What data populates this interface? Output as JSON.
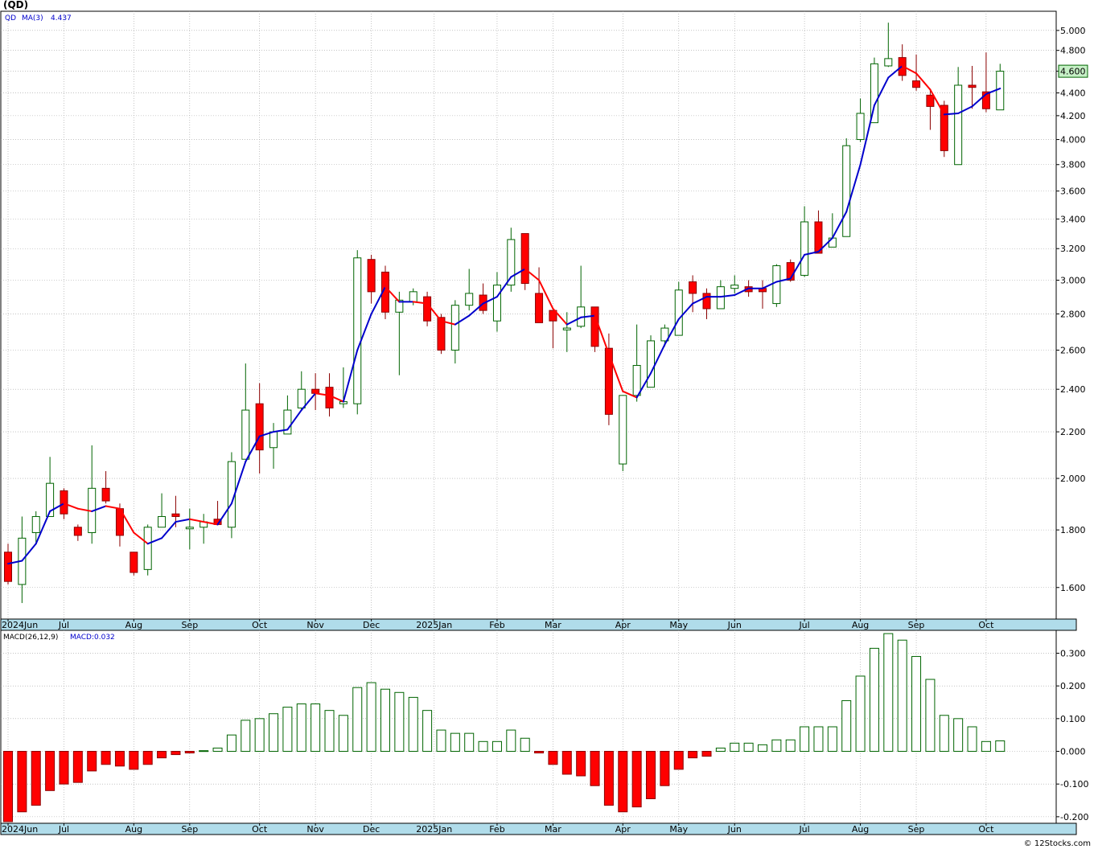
{
  "title": "(QD)",
  "credit": "© 12Stocks.com",
  "price_legend": {
    "symbol": "QD",
    "ma_label": "MA(3)",
    "ma_value": "4.437"
  },
  "macd_legend": {
    "params": "MACD(26,12,9)",
    "value_label": "MACD:0.032"
  },
  "last_price_label": "4.600",
  "colors": {
    "up_body": "#ffffff",
    "up_border": "#006400",
    "down_body": "#ff0000",
    "down_border": "#8b0000",
    "ma_up": "#0000cc",
    "ma_down": "#ff0000",
    "grid": "#a0a0a0",
    "axis_band": "#b0dcea",
    "last_price_bg": "#c6f0c6",
    "last_price_border": "#006400"
  },
  "chart_data": [
    {
      "type": "candlestick",
      "scale": "log",
      "ylim": [
        1.5,
        5.2
      ],
      "yticks": [
        1.6,
        1.8,
        2.0,
        2.2,
        2.4,
        2.6,
        2.8,
        3.0,
        3.2,
        3.4,
        3.6,
        3.8,
        4.0,
        4.2,
        4.4,
        4.6,
        4.8,
        5.0
      ],
      "ytick_labels": [
        "1.600",
        "1.800",
        "2.000",
        "2.200",
        "2.400",
        "2.600",
        "2.800",
        "3.000",
        "3.200",
        "3.400",
        "3.600",
        "3.800",
        "4.000",
        "4.200",
        "4.400",
        "4.600",
        "4.800",
        "5.000"
      ],
      "xticks": [
        {
          "label": "2024Jun",
          "bar": 0
        },
        {
          "label": "Jul",
          "bar": 4
        },
        {
          "label": "Aug",
          "bar": 9
        },
        {
          "label": "Sep",
          "bar": 13
        },
        {
          "label": "Oct",
          "bar": 18
        },
        {
          "label": "Nov",
          "bar": 22
        },
        {
          "label": "Dec",
          "bar": 26
        },
        {
          "label": "2025Jan",
          "bar": 30.5
        },
        {
          "label": "Feb",
          "bar": 35
        },
        {
          "label": "Mar",
          "bar": 39
        },
        {
          "label": "Apr",
          "bar": 44
        },
        {
          "label": "May",
          "bar": 48
        },
        {
          "label": "Jun",
          "bar": 52
        },
        {
          "label": "Jul",
          "bar": 57
        },
        {
          "label": "Aug",
          "bar": 61
        },
        {
          "label": "Sep",
          "bar": 65
        },
        {
          "label": "Oct",
          "bar": 70
        }
      ],
      "grid": true,
      "candles": [
        {
          "o": 1.72,
          "h": 1.75,
          "l": 1.61,
          "c": 1.62
        },
        {
          "o": 1.61,
          "h": 1.85,
          "l": 1.55,
          "c": 1.77
        },
        {
          "o": 1.79,
          "h": 1.87,
          "l": 1.75,
          "c": 1.85
        },
        {
          "o": 1.85,
          "h": 2.09,
          "l": 1.85,
          "c": 1.98
        },
        {
          "o": 1.95,
          "h": 1.96,
          "l": 1.84,
          "c": 1.86
        },
        {
          "o": 1.81,
          "h": 1.82,
          "l": 1.76,
          "c": 1.78
        },
        {
          "o": 1.79,
          "h": 2.14,
          "l": 1.75,
          "c": 1.96
        },
        {
          "o": 1.96,
          "h": 2.03,
          "l": 1.9,
          "c": 1.91
        },
        {
          "o": 1.88,
          "h": 1.9,
          "l": 1.74,
          "c": 1.78
        },
        {
          "o": 1.72,
          "h": 1.72,
          "l": 1.64,
          "c": 1.65
        },
        {
          "o": 1.66,
          "h": 1.82,
          "l": 1.64,
          "c": 1.81
        },
        {
          "o": 1.81,
          "h": 1.94,
          "l": 1.81,
          "c": 1.85
        },
        {
          "o": 1.86,
          "h": 1.93,
          "l": 1.81,
          "c": 1.85
        },
        {
          "o": 1.81,
          "h": 1.88,
          "l": 1.73,
          "c": 1.81
        },
        {
          "o": 1.81,
          "h": 1.86,
          "l": 1.75,
          "c": 1.83
        },
        {
          "o": 1.84,
          "h": 1.91,
          "l": 1.83,
          "c": 1.82
        },
        {
          "o": 1.81,
          "h": 2.11,
          "l": 1.77,
          "c": 2.07
        },
        {
          "o": 2.08,
          "h": 2.53,
          "l": 2.08,
          "c": 2.3
        },
        {
          "o": 2.33,
          "h": 2.43,
          "l": 2.02,
          "c": 2.12
        },
        {
          "o": 2.13,
          "h": 2.24,
          "l": 2.04,
          "c": 2.2
        },
        {
          "o": 2.19,
          "h": 2.37,
          "l": 2.19,
          "c": 2.3
        },
        {
          "o": 2.31,
          "h": 2.49,
          "l": 2.3,
          "c": 2.4
        },
        {
          "o": 2.4,
          "h": 2.48,
          "l": 2.3,
          "c": 2.38
        },
        {
          "o": 2.41,
          "h": 2.48,
          "l": 2.27,
          "c": 2.31
        },
        {
          "o": 2.33,
          "h": 2.51,
          "l": 2.31,
          "c": 2.34
        },
        {
          "o": 2.33,
          "h": 3.19,
          "l": 2.28,
          "c": 3.14
        },
        {
          "o": 3.13,
          "h": 3.16,
          "l": 2.86,
          "c": 2.93
        },
        {
          "o": 3.05,
          "h": 3.09,
          "l": 2.77,
          "c": 2.81
        },
        {
          "o": 2.81,
          "h": 2.93,
          "l": 2.47,
          "c": 2.88
        },
        {
          "o": 2.87,
          "h": 2.95,
          "l": 2.85,
          "c": 2.93
        },
        {
          "o": 2.9,
          "h": 2.93,
          "l": 2.73,
          "c": 2.76
        },
        {
          "o": 2.78,
          "h": 2.8,
          "l": 2.58,
          "c": 2.6
        },
        {
          "o": 2.6,
          "h": 2.88,
          "l": 2.53,
          "c": 2.85
        },
        {
          "o": 2.85,
          "h": 3.07,
          "l": 2.82,
          "c": 2.92
        },
        {
          "o": 2.91,
          "h": 2.98,
          "l": 2.8,
          "c": 2.82
        },
        {
          "o": 2.76,
          "h": 3.05,
          "l": 2.7,
          "c": 2.97
        },
        {
          "o": 2.97,
          "h": 3.34,
          "l": 2.93,
          "c": 3.26
        },
        {
          "o": 3.3,
          "h": 3.3,
          "l": 2.94,
          "c": 2.98
        },
        {
          "o": 2.92,
          "h": 3.08,
          "l": 2.75,
          "c": 2.75
        },
        {
          "o": 2.82,
          "h": 2.82,
          "l": 2.61,
          "c": 2.76
        },
        {
          "o": 2.71,
          "h": 2.81,
          "l": 2.59,
          "c": 2.72
        },
        {
          "o": 2.73,
          "h": 3.09,
          "l": 2.72,
          "c": 2.84
        },
        {
          "o": 2.84,
          "h": 2.84,
          "l": 2.59,
          "c": 2.62
        },
        {
          "o": 2.61,
          "h": 2.69,
          "l": 2.23,
          "c": 2.28
        },
        {
          "o": 2.06,
          "h": 2.36,
          "l": 2.03,
          "c": 2.37
        },
        {
          "o": 2.37,
          "h": 2.74,
          "l": 2.34,
          "c": 2.52
        },
        {
          "o": 2.41,
          "h": 2.68,
          "l": 2.41,
          "c": 2.65
        },
        {
          "o": 2.65,
          "h": 2.74,
          "l": 2.62,
          "c": 2.72
        },
        {
          "o": 2.68,
          "h": 2.99,
          "l": 2.68,
          "c": 2.94
        },
        {
          "o": 2.99,
          "h": 3.03,
          "l": 2.81,
          "c": 2.92
        },
        {
          "o": 2.92,
          "h": 2.95,
          "l": 2.77,
          "c": 2.83
        },
        {
          "o": 2.83,
          "h": 3.0,
          "l": 2.83,
          "c": 2.96
        },
        {
          "o": 2.95,
          "h": 3.03,
          "l": 2.92,
          "c": 2.97
        },
        {
          "o": 2.96,
          "h": 3.0,
          "l": 2.9,
          "c": 2.93
        },
        {
          "o": 2.95,
          "h": 3.0,
          "l": 2.83,
          "c": 2.93
        },
        {
          "o": 2.86,
          "h": 3.1,
          "l": 2.84,
          "c": 3.09
        },
        {
          "o": 3.11,
          "h": 3.13,
          "l": 2.99,
          "c": 3.0
        },
        {
          "o": 3.03,
          "h": 3.49,
          "l": 3.02,
          "c": 3.38
        },
        {
          "o": 3.38,
          "h": 3.46,
          "l": 3.17,
          "c": 3.17
        },
        {
          "o": 3.21,
          "h": 3.44,
          "l": 3.21,
          "c": 3.27
        },
        {
          "o": 3.28,
          "h": 4.01,
          "l": 3.28,
          "c": 3.95
        },
        {
          "o": 4.0,
          "h": 4.35,
          "l": 3.98,
          "c": 4.22
        },
        {
          "o": 4.14,
          "h": 4.73,
          "l": 4.14,
          "c": 4.67
        },
        {
          "o": 4.65,
          "h": 5.08,
          "l": 4.64,
          "c": 4.72
        },
        {
          "o": 4.73,
          "h": 4.86,
          "l": 4.51,
          "c": 4.56
        },
        {
          "o": 4.51,
          "h": 4.76,
          "l": 4.42,
          "c": 4.45
        },
        {
          "o": 4.38,
          "h": 4.43,
          "l": 4.08,
          "c": 4.28
        },
        {
          "o": 4.29,
          "h": 4.33,
          "l": 3.86,
          "c": 3.91
        },
        {
          "o": 3.8,
          "h": 4.64,
          "l": 3.8,
          "c": 4.47
        },
        {
          "o": 4.47,
          "h": 4.65,
          "l": 4.26,
          "c": 4.45
        },
        {
          "o": 4.41,
          "h": 4.78,
          "l": 4.23,
          "c": 4.26
        },
        {
          "o": 4.25,
          "h": 4.67,
          "l": 4.25,
          "c": 4.6
        }
      ],
      "moving_average": {
        "name": "MA(3)",
        "values": [
          1.68,
          1.69,
          1.75,
          1.87,
          1.9,
          1.88,
          1.87,
          1.89,
          1.88,
          1.79,
          1.75,
          1.77,
          1.83,
          1.84,
          1.83,
          1.82,
          1.9,
          2.07,
          2.18,
          2.2,
          2.21,
          2.3,
          2.38,
          2.37,
          2.34,
          2.6,
          2.8,
          2.96,
          2.87,
          2.87,
          2.86,
          2.76,
          2.74,
          2.79,
          2.86,
          2.9,
          3.02,
          3.07,
          3.0,
          2.83,
          2.74,
          2.78,
          2.79,
          2.58,
          2.39,
          2.36,
          2.48,
          2.63,
          2.77,
          2.86,
          2.9,
          2.9,
          2.91,
          2.95,
          2.95,
          2.99,
          3.01,
          3.16,
          3.18,
          3.27,
          3.45,
          3.8,
          4.29,
          4.54,
          4.65,
          4.58,
          4.43,
          4.21,
          4.22,
          4.28,
          4.39,
          4.44
        ]
      }
    },
    {
      "type": "bar",
      "series_label": "MACD(26,12,9)",
      "ylim": [
        -0.22,
        0.37
      ],
      "yticks": [
        -0.2,
        -0.1,
        0.0,
        0.1,
        0.2,
        0.3
      ],
      "ytick_labels": [
        "-0.200",
        "-0.100",
        "0.000",
        "0.100",
        "0.200",
        "0.300"
      ],
      "grid": true,
      "values": [
        -0.215,
        -0.185,
        -0.165,
        -0.12,
        -0.1,
        -0.095,
        -0.06,
        -0.04,
        -0.045,
        -0.055,
        -0.04,
        -0.02,
        -0.01,
        -0.005,
        0.002,
        0.01,
        0.05,
        0.095,
        0.1,
        0.115,
        0.135,
        0.145,
        0.145,
        0.125,
        0.11,
        0.195,
        0.21,
        0.19,
        0.18,
        0.165,
        0.125,
        0.065,
        0.055,
        0.055,
        0.03,
        0.03,
        0.065,
        0.04,
        -0.005,
        -0.04,
        -0.07,
        -0.075,
        -0.105,
        -0.165,
        -0.185,
        -0.17,
        -0.145,
        -0.105,
        -0.055,
        -0.02,
        -0.015,
        0.01,
        0.025,
        0.025,
        0.02,
        0.035,
        0.035,
        0.075,
        0.075,
        0.075,
        0.155,
        0.23,
        0.315,
        0.36,
        0.34,
        0.29,
        0.22,
        0.11,
        0.1,
        0.075,
        0.03,
        0.032
      ]
    }
  ]
}
